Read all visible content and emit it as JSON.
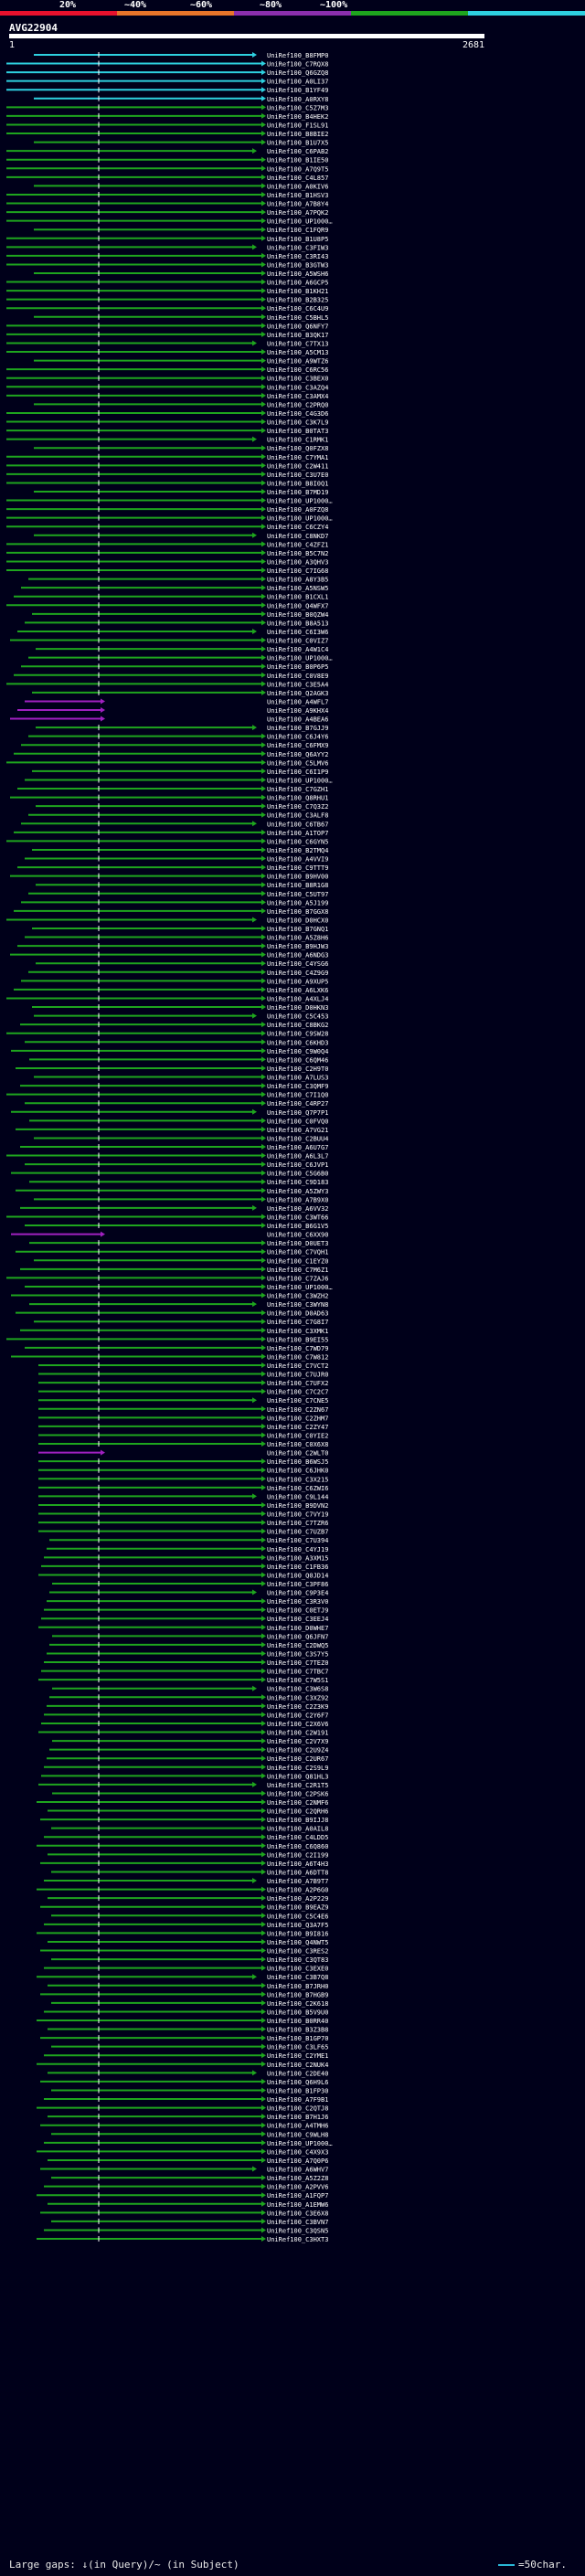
{
  "query": {
    "name": "AVG22904",
    "start": "1",
    "end": "2681"
  },
  "legend": {
    "labels": [
      "20%",
      "~40%",
      "~60%",
      "~80%",
      "~100%"
    ],
    "colors": [
      "#e8112d",
      "#e8752a",
      "#8b2fae",
      "#1ea51e",
      "#2ed0e0"
    ]
  },
  "footer": {
    "gaps": "Large gaps: ↓(in Query)/~ (in Subject)",
    "key": "=50char."
  },
  "colors": {
    "high": "#2ed0e0",
    "med": "#1ea51e",
    "low": "#a020c0"
  },
  "hit_labels": [
    "UniRef100_B8FMP0",
    "UniRef100_C7RQX8",
    "UniRef100_Q6GZQ8",
    "UniRef100_A0LI37",
    "UniRef100_B1YF49",
    "UniRef100_A0RXY8",
    "UniRef100_C5Z7M3",
    "UniRef100_B4HEK2",
    "UniRef100_F1SL91",
    "UniRef100_B8BIE2",
    "UniRef100_B1U7X5",
    "UniRef100_C6PAB2",
    "UniRef100_B1IE50",
    "UniRef100_A7Q9T5",
    "UniRef100_C4L857",
    "UniRef100_A0KIV6",
    "UniRef100_B1HSV3",
    "UniRef100_A7B8Y4",
    "UniRef100_A7PQK2",
    "UniRef100_UP1000…",
    "UniRef100_C1FQR9",
    "UniRef100_B1U8P5",
    "UniRef100_C3FIW3",
    "UniRef100_C3RI43",
    "UniRef100_B3GTW3",
    "UniRef100_A5WSH6",
    "UniRef100_A6GCP5",
    "UniRef100_B1KH21",
    "UniRef100_B2B325",
    "UniRef100_C6C4U9",
    "UniRef100_C5BHL5",
    "UniRef100_Q6NFY7",
    "UniRef100_B3QK17",
    "UniRef100_C7TX13",
    "UniRef100_A5CM13",
    "UniRef100_A9WTZ6",
    "UniRef100_C6RC56",
    "UniRef100_C3BEX0",
    "UniRef100_C3AZQ4",
    "UniRef100_C3AMX4",
    "UniRef100_C2PRQ0",
    "UniRef100_C4G3D6",
    "UniRef100_C3K7L9",
    "UniRef100_B0TAT3",
    "UniRef100_C1RMK1",
    "UniRef100_Q0FZX8",
    "UniRef100_C7YMA1",
    "UniRef100_C2W411",
    "UniRef100_C3U7E0",
    "UniRef100_B8I0Q1",
    "UniRef100_B7MD19",
    "UniRef100_UP1000…",
    "UniRef100_A0FZQ8",
    "UniRef100_UP1000…",
    "UniRef100_C6CZY4",
    "UniRef100_C8NKD7",
    "UniRef100_C4ZFZ1",
    "UniRef100_B5C7N2",
    "UniRef100_A3QHV3",
    "UniRef100_C7IG68",
    "UniRef100_A8Y3B5",
    "UniRef100_A5NSW5",
    "UniRef100_B1CXL1",
    "UniRef100_Q4WFX7",
    "UniRef100_B0QZW4",
    "UniRef100_B8A513",
    "UniRef100_C6I3W6",
    "UniRef100_C0VIZ7",
    "UniRef100_A4W1C4",
    "UniRef100_UP1000…",
    "UniRef100_B0P6P5",
    "UniRef100_C0V8E9",
    "UniRef100_C3E5A4",
    "UniRef100_Q2AGK3",
    "UniRef100_A4WFL7",
    "UniRef100_A9KHX4",
    "UniRef100_A4BEA6",
    "UniRef100_B7GJJ9",
    "UniRef100_C6J4Y6",
    "UniRef100_C6FMX9",
    "UniRef100_Q6AYY2",
    "UniRef100_C5LMV6",
    "UniRef100_C6I1P9",
    "UniRef100_UP1000…",
    "UniRef100_C7GZH1",
    "UniRef100_Q8RHU1",
    "UniRef100_C7Q3Z2",
    "UniRef100_C3ALF8",
    "UniRef100_C6TB67",
    "UniRef100_A1TOP7",
    "UniRef100_C6GYN5",
    "UniRef100_B2TMQ4",
    "UniRef100_A4VVI9",
    "UniRef100_C9TTT9",
    "UniRef100_B9HV00",
    "UniRef100_B8R1G8",
    "UniRef100_C5UT97",
    "UniRef100_A5J199",
    "UniRef100_B7GGX8",
    "UniRef100_D0HCX0",
    "UniRef100_B7GNQ1",
    "UniRef100_A5Z8H6",
    "UniRef100_B9HJW3",
    "UniRef100_A6NDG3",
    "UniRef100_C4YSG6",
    "UniRef100_C4Z9G9",
    "UniRef100_A9XUP5",
    "UniRef100_A6LXK6",
    "UniRef100_A4XLJ4",
    "UniRef100_D0HKN3",
    "UniRef100_C5C453",
    "UniRef100_C8BKG2",
    "UniRef100_C9SW28",
    "UniRef100_C6KHD3",
    "UniRef100_C9W0Q4",
    "UniRef100_C6QM46",
    "UniRef100_C2H9T0",
    "UniRef100_A7LUS3",
    "UniRef100_C3QMF9",
    "UniRef100_C7I1Q0",
    "UniRef100_C4RP27",
    "UniRef100_Q7P7P1",
    "UniRef100_C0FVQ0",
    "UniRef100_A7VG21",
    "UniRef100_C2BUU4",
    "UniRef100_A6U7G7",
    "UniRef100_A6L3L7",
    "UniRef100_C6JVP1",
    "UniRef100_C5G6B0",
    "UniRef100_C9D183",
    "UniRef100_A5ZWY3",
    "UniRef100_A7B9X0",
    "UniRef100_A6VV32",
    "UniRef100_C3WT66",
    "UniRef100_B6G1V5",
    "UniRef100_C6XX90",
    "UniRef100_D0UET3",
    "UniRef100_C7VQH1",
    "UniRef100_C1EYZ0",
    "UniRef100_C7M6Z1",
    "UniRef100_C7ZAJ6",
    "UniRef100_UP1000…",
    "UniRef100_C3WZH2",
    "UniRef100_C3WYN8",
    "UniRef100_D0AD63",
    "UniRef100_C7G8I7",
    "UniRef100_C3XMK1",
    "UniRef100_B9EI55",
    "UniRef100_C7WD79",
    "UniRef100_C7W812",
    "UniRef100_C7VCT2",
    "UniRef100_C7UJR0",
    "UniRef100_C7UFX2",
    "UniRef100_C7C2C7",
    "UniRef100_C7CNE5",
    "UniRef100_C2ZN67",
    "UniRef100_C2ZHM7",
    "UniRef100_C2ZY47",
    "UniRef100_C0YIE2",
    "UniRef100_C0X6X8",
    "UniRef100_C2WLT0",
    "UniRef100_B6WSJ5",
    "UniRef100_C6JHK0",
    "UniRef100_C3X215",
    "UniRef100_C6ZWI6",
    "UniRef100_C9L144",
    "UniRef100_B9DVN2",
    "UniRef100_C7VY19",
    "UniRef100_C7TZR6",
    "UniRef100_C7UZB7",
    "UniRef100_C7U394",
    "UniRef100_C4YJ19",
    "UniRef100_A3XM15",
    "UniRef100_C1FB36",
    "UniRef100_Q0JD14",
    "UniRef100_C3PF86",
    "UniRef100_C9P3E4",
    "UniRef100_C3R3V0",
    "UniRef100_C0ETJ9",
    "UniRef100_C3EEJ4",
    "UniRef100_D0WHE7",
    "UniRef100_Q6JFN7",
    "UniRef100_C2DWQ5",
    "UniRef100_C3S7Y5",
    "UniRef100_C7TEZ0",
    "UniRef100_C7TBC7",
    "UniRef100_C7W5S1",
    "UniRef100_C3W6S8",
    "UniRef100_C3XZ92",
    "UniRef100_C2Z3K9",
    "UniRef100_C2Y6F7",
    "UniRef100_C2X6V6",
    "UniRef100_C2W191",
    "UniRef100_C2V7X9",
    "UniRef100_C2U9Z4",
    "UniRef100_C2UR67",
    "UniRef100_C2S9L9",
    "UniRef100_Q81HL3",
    "UniRef100_C2R1T5",
    "UniRef100_C2PSK6",
    "UniRef100_C2NMF6",
    "UniRef100_C2QRH6",
    "UniRef100_B9IJJ8",
    "UniRef100_A0AIL8",
    "UniRef100_C4LDD5",
    "UniRef100_C6Q860",
    "UniRef100_C2I199",
    "UniRef100_A6T4H3",
    "UniRef100_A6DTT8",
    "UniRef100_A7B9T7",
    "UniRef100_A2P6G0",
    "UniRef100_A2P229",
    "UniRef100_B9EAZ9",
    "UniRef100_C5C4E6",
    "UniRef100_Q3A7F5",
    "UniRef100_B9I816",
    "UniRef100_Q4NWT5",
    "UniRef100_C3RES2",
    "UniRef100_C3QT83",
    "UniRef100_C3EXE0",
    "UniRef100_C3B7Q8",
    "UniRef100_B7JRH0",
    "UniRef100_B7HGB9",
    "UniRef100_C2K618",
    "UniRef100_B5V9U0",
    "UniRef100_B0RR40",
    "UniRef100_B3Z3B8",
    "UniRef100_B1GP70",
    "UniRef100_C3LF65",
    "UniRef100_C2YME1",
    "UniRef100_C2NUK4",
    "UniRef100_C2DE40",
    "UniRef100_Q6H9L6",
    "UniRef100_B1FP30",
    "UniRef100_A7F9B1",
    "UniRef100_C2QTJ8",
    "UniRef100_B7H1J6",
    "UniRef100_A4TMH6",
    "UniRef100_C9WLH8",
    "UniRef100_UP1000…",
    "UniRef100_C4X9X3",
    "UniRef100_A7Q0P6",
    "UniRef100_A6WHV7",
    "UniRef100_A5Z2Z8",
    "UniRef100_A2PVV6",
    "UniRef100_A1FQP7",
    "UniRef100_A1EMW6",
    "UniRef100_C3E6X8",
    "UniRef100_C3BVN7",
    "UniRef100_C3QSN5",
    "UniRef100_C3HXT3"
  ]
}
